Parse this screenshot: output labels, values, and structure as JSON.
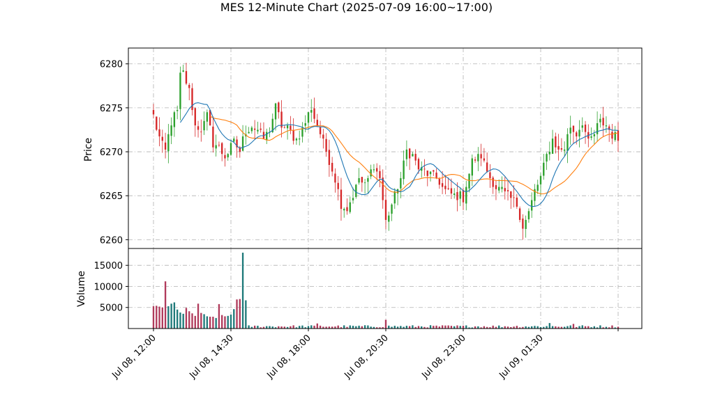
{
  "chart_data": {
    "type": "candlestick",
    "title": "MES 12-Minute Chart (2025-07-09 16:00~17:00)",
    "price_panel": {
      "ylabel": "Price",
      "ylim": [
        6259.0,
        6281.8
      ],
      "yticks": [
        6260,
        6265,
        6270,
        6275,
        6280
      ]
    },
    "volume_panel": {
      "ylabel": "Volume",
      "ylim": [
        0,
        19000
      ],
      "yticks": [
        5000,
        10000,
        15000
      ]
    },
    "x_ticks": [
      {
        "index": 0,
        "label": "Jul 08, 12:00"
      },
      {
        "index": 26,
        "label": "Jul 08, 14:30"
      },
      {
        "index": 52,
        "label": "Jul 08, 18:00"
      },
      {
        "index": 78,
        "label": "Jul 08, 20:30"
      },
      {
        "index": 104,
        "label": "Jul 08, 23:00"
      },
      {
        "index": 130,
        "label": "Jul 09, 01:30"
      },
      {
        "index": 156,
        "label": ""
      }
    ],
    "grid": true,
    "up_color": "#2ca02c",
    "down_color": "#d62728",
    "vol_up_color": "#1f7a7a",
    "vol_down_color": "#b03a5b",
    "ma_fast_color": "#1f77b4",
    "ma_slow_color": "#ff7f0e",
    "key_closes": [
      [
        0,
        6274.0
      ],
      [
        2,
        6271.5
      ],
      [
        4,
        6270.0
      ],
      [
        6,
        6273.5
      ],
      [
        8,
        6274.5
      ],
      [
        9,
        6278.5
      ],
      [
        10,
        6279.0
      ],
      [
        12,
        6277.0
      ],
      [
        14,
        6273.0
      ],
      [
        16,
        6272.5
      ],
      [
        18,
        6274.0
      ],
      [
        20,
        6271.0
      ],
      [
        22,
        6270.5
      ],
      [
        24,
        6269.5
      ],
      [
        27,
        6271.0
      ],
      [
        29,
        6270.0
      ],
      [
        31,
        6272.5
      ],
      [
        33,
        6273.0
      ],
      [
        35,
        6272.5
      ],
      [
        37,
        6271.5
      ],
      [
        39,
        6272.5
      ],
      [
        41,
        6275.0
      ],
      [
        43,
        6273.0
      ],
      [
        45,
        6272.5
      ],
      [
        48,
        6271.5
      ],
      [
        50,
        6272.5
      ],
      [
        53,
        6275.0
      ],
      [
        55,
        6273.0
      ],
      [
        57,
        6271.0
      ],
      [
        59,
        6269.0
      ],
      [
        61,
        6267.0
      ],
      [
        63,
        6264.0
      ],
      [
        65,
        6263.5
      ],
      [
        67,
        6265.0
      ],
      [
        69,
        6267.0
      ],
      [
        71,
        6266.0
      ],
      [
        74,
        6268.5
      ],
      [
        76,
        6267.0
      ],
      [
        78,
        6262.0
      ],
      [
        79,
        6263.0
      ],
      [
        81,
        6265.0
      ],
      [
        83,
        6267.0
      ],
      [
        85,
        6270.0
      ],
      [
        87,
        6269.5
      ],
      [
        89,
        6268.0
      ],
      [
        92,
        6267.5
      ],
      [
        95,
        6267.0
      ],
      [
        98,
        6265.5
      ],
      [
        101,
        6265.0
      ],
      [
        104,
        6264.8
      ],
      [
        107,
        6269.0
      ],
      [
        110,
        6269.5
      ],
      [
        113,
        6267.0
      ],
      [
        115,
        6266.0
      ],
      [
        117,
        6265.5
      ],
      [
        119,
        6265.0
      ],
      [
        122,
        6264.0
      ],
      [
        124,
        6261.5
      ],
      [
        126,
        6263.0
      ],
      [
        128,
        6265.5
      ],
      [
        130,
        6267.0
      ],
      [
        132,
        6269.5
      ],
      [
        134,
        6271.5
      ],
      [
        136,
        6270.0
      ],
      [
        138,
        6270.5
      ],
      [
        140,
        6273.0
      ],
      [
        142,
        6272.0
      ],
      [
        144,
        6273.5
      ],
      [
        146,
        6271.0
      ],
      [
        148,
        6272.0
      ],
      [
        150,
        6273.5
      ],
      [
        152,
        6273.0
      ],
      [
        154,
        6272.0
      ],
      [
        156,
        6271.5
      ]
    ],
    "volume_spikes": [
      [
        0,
        5300
      ],
      [
        1,
        5400
      ],
      [
        2,
        5200
      ],
      [
        3,
        5000
      ],
      [
        4,
        11200
      ],
      [
        5,
        5300
      ],
      [
        6,
        5900
      ],
      [
        7,
        6200
      ],
      [
        8,
        4500
      ],
      [
        9,
        3800
      ],
      [
        10,
        3500
      ],
      [
        11,
        4900
      ],
      [
        12,
        4100
      ],
      [
        13,
        3600
      ],
      [
        14,
        3000
      ],
      [
        15,
        5900
      ],
      [
        16,
        3700
      ],
      [
        17,
        3400
      ],
      [
        18,
        2900
      ],
      [
        19,
        2800
      ],
      [
        20,
        2800
      ],
      [
        21,
        2500
      ],
      [
        22,
        5800
      ],
      [
        23,
        3200
      ],
      [
        24,
        2900
      ],
      [
        25,
        3000
      ],
      [
        26,
        3300
      ],
      [
        27,
        4600
      ],
      [
        28,
        6900
      ],
      [
        29,
        7000
      ],
      [
        30,
        18000
      ],
      [
        31,
        6700
      ],
      [
        55,
        1200
      ],
      [
        78,
        2100
      ],
      [
        133,
        1300
      ],
      [
        141,
        1100
      ]
    ]
  }
}
